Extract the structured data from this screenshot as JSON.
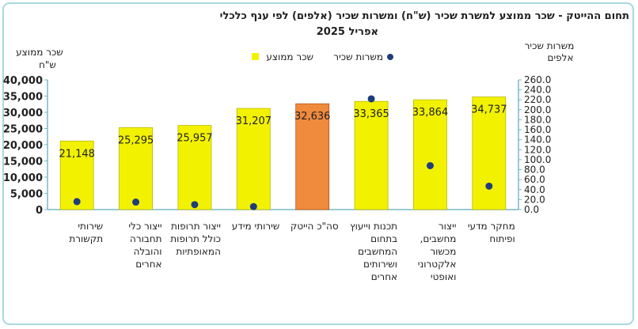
{
  "chart_data": {
    "type": "bar",
    "title_line1": "תחום ההייטק -  שכר ממוצע למשרת שכיר (ש\"ח) ומשרות שכיר (אלפים) לפי ענף כלכלי",
    "title_line2": "אפריל 2025",
    "left_axis_label_line1": "שכר ממוצע",
    "left_axis_label_line2": "ש\"ח",
    "right_axis_label_line1": "משרות שכיר",
    "right_axis_label_line2": "אלפים",
    "legend": {
      "bar_series": "שכר ממוצע",
      "dot_series": "משרות שכיר"
    },
    "left_ticks": [
      "0",
      "5,000",
      "10,000",
      "15,000",
      "20,000",
      "25,000",
      "30,000",
      "35,000",
      "40,000"
    ],
    "right_ticks": [
      "0.0",
      "20.0",
      "40.0",
      "60.0",
      "80.0",
      "100.0",
      "120.0",
      "140.0",
      "160.0",
      "180.0",
      "200.0",
      "220.0",
      "240.0",
      "260.0"
    ],
    "ylim_left": [
      0,
      40000
    ],
    "ylim_right": [
      0,
      260
    ],
    "categories": [
      {
        "label": [
          "שירותי",
          "תקשורת"
        ],
        "wage": 21148,
        "wage_label": "21,148",
        "jobs": 16,
        "highlight": false
      },
      {
        "label": [
          "ייצור כלי",
          "תחבורה",
          "והובלה",
          "אחרים"
        ],
        "wage": 25295,
        "wage_label": "25,295",
        "jobs": 15,
        "highlight": false
      },
      {
        "label": [
          "ייצור תרופות",
          "כולל תרופות",
          "המאופתיות"
        ],
        "wage": 25957,
        "wage_label": "25,957",
        "jobs": 10,
        "highlight": false
      },
      {
        "label": [
          "שירותי מידע"
        ],
        "wage": 31207,
        "wage_label": "31,207",
        "jobs": 6,
        "highlight": false
      },
      {
        "label": [
          "סה\"כ הייטק"
        ],
        "wage": 32636,
        "wage_label": "32,636",
        "jobs": null,
        "highlight": true
      },
      {
        "label": [
          "תכנות וייעוץ",
          "בתחום",
          "המחשבים",
          "ושירותים",
          "אחרים"
        ],
        "wage": 33365,
        "wage_label": "33,365",
        "jobs": 222,
        "highlight": false
      },
      {
        "label": [
          "ייצור",
          "מחשבים,",
          "מכשור",
          "אלקטרוני",
          "ואופטי"
        ],
        "wage": 33864,
        "wage_label": "33,864",
        "jobs": 88,
        "highlight": false
      },
      {
        "label": [
          "מחקר מדעי",
          "ופיתוח"
        ],
        "wage": 34737,
        "wage_label": "34,737",
        "jobs": 47,
        "highlight": false
      }
    ],
    "colors": {
      "bar": "#f2f200",
      "bar_stroke": "#b8b800",
      "highlight_bar": "#f08a3c",
      "highlight_stroke": "#b8561a",
      "dot": "#1f3d7a",
      "axis": "#7ab8c8"
    }
  }
}
